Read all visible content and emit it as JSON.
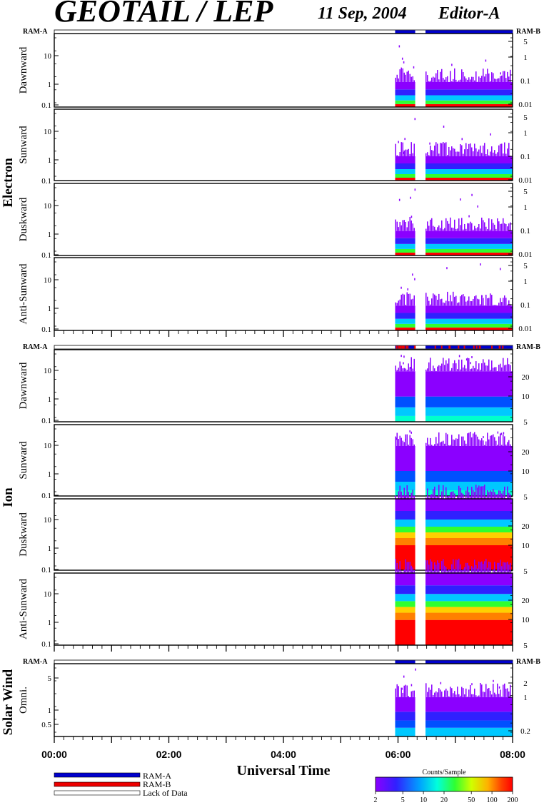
{
  "header": {
    "title": "GEOTAIL / LEP",
    "date": "11 Sep, 2004",
    "editor": "Editor-A"
  },
  "ram": {
    "a_label": "RAM-A",
    "b_label": "RAM-B"
  },
  "groups": {
    "electron": "Electron",
    "ion": "Ion",
    "solar_wind": "Solar Wind"
  },
  "colors": {
    "ram_a": "#0000cc",
    "ram_b": "#ee0000",
    "lack_of_data": "#ffffff",
    "colorbar": [
      "#8b00ff",
      "#3a20ff",
      "#0050ff",
      "#00c8ff",
      "#00ffcc",
      "#30ff30",
      "#c0ff00",
      "#ffd000",
      "#ff6000",
      "#ff0000"
    ]
  },
  "chart_data": [
    {
      "type": "heatmap",
      "group": "Electron",
      "panels": [
        {
          "ylabel": "Dawnward",
          "left_ticks": [
            "10",
            "1",
            "0.1"
          ],
          "right_ticks": [
            "5",
            "1",
            "0.1",
            "0.01"
          ]
        },
        {
          "ylabel": "Sunward",
          "left_ticks": [
            "10",
            "1",
            "0.1"
          ],
          "right_ticks": [
            "5",
            "1",
            "0.1",
            "0.01"
          ]
        },
        {
          "ylabel": "Duskward",
          "left_ticks": [
            "10",
            "1",
            "0.1"
          ],
          "right_ticks": [
            "5",
            "1",
            "0.1",
            "0.01"
          ]
        },
        {
          "ylabel": "Anti-Sunward",
          "left_ticks": [
            "10",
            "1",
            "0.1"
          ],
          "right_ticks": [
            "5",
            "1",
            "0.1",
            "0.01"
          ]
        }
      ],
      "data_coverage_hours": [
        [
          5.95,
          6.3
        ],
        [
          6.48,
          8.0
        ]
      ],
      "ram_bar": [
        {
          "start": 5.95,
          "end": 6.3,
          "mode": "RAM-A"
        },
        {
          "start": 6.48,
          "end": 8.0,
          "mode": "RAM-A"
        }
      ]
    },
    {
      "type": "heatmap",
      "group": "Ion",
      "panels": [
        {
          "ylabel": "Dawnward",
          "left_ticks": [
            "10",
            "1",
            "0.1"
          ],
          "right_ticks": [
            "20",
            "10",
            "5"
          ]
        },
        {
          "ylabel": "Sunward",
          "left_ticks": [
            "10",
            "1",
            "0.1"
          ],
          "right_ticks": [
            "20",
            "10",
            "5"
          ]
        },
        {
          "ylabel": "Duskward",
          "left_ticks": [
            "10",
            "1",
            "0.1"
          ],
          "right_ticks": [
            "20",
            "10",
            "5"
          ]
        },
        {
          "ylabel": "Anti-Sunward",
          "left_ticks": [
            "10",
            "1",
            "0.1"
          ],
          "right_ticks": [
            "20",
            "10",
            "5"
          ]
        }
      ],
      "data_coverage_hours": [
        [
          5.95,
          6.3
        ],
        [
          6.48,
          8.0
        ]
      ],
      "ram_bar": [
        {
          "start": 5.95,
          "end": 6.3,
          "mode": "mixed"
        },
        {
          "start": 6.48,
          "end": 8.0,
          "mode": "mixed"
        }
      ]
    },
    {
      "type": "heatmap",
      "group": "Solar Wind",
      "panels": [
        {
          "ylabel": "Omni.",
          "left_ticks": [
            "5",
            "1",
            "0.5"
          ],
          "right_ticks": [
            "2",
            "1",
            "0.2"
          ]
        }
      ],
      "data_coverage_hours": [
        [
          5.95,
          6.3
        ],
        [
          6.48,
          8.0
        ]
      ],
      "ram_bar": [
        {
          "start": 5.95,
          "end": 6.3,
          "mode": "RAM-A"
        },
        {
          "start": 6.48,
          "end": 8.0,
          "mode": "RAM-A"
        }
      ]
    }
  ],
  "x_axis": {
    "label": "Universal Time",
    "range_hours": [
      0,
      8
    ],
    "tick_labels": [
      "00:00",
      "02:00",
      "04:00",
      "06:00",
      "08:00"
    ]
  },
  "legend": {
    "items": [
      {
        "label": "RAM-A",
        "color": "#0000cc"
      },
      {
        "label": "RAM-B",
        "color": "#ee0000"
      },
      {
        "label": "Lack of Data",
        "color": "#ffffff"
      }
    ]
  },
  "colorbar": {
    "title": "Counts/Sample",
    "ticks": [
      "2",
      "5",
      "10",
      "20",
      "50",
      "100",
      "200"
    ]
  }
}
